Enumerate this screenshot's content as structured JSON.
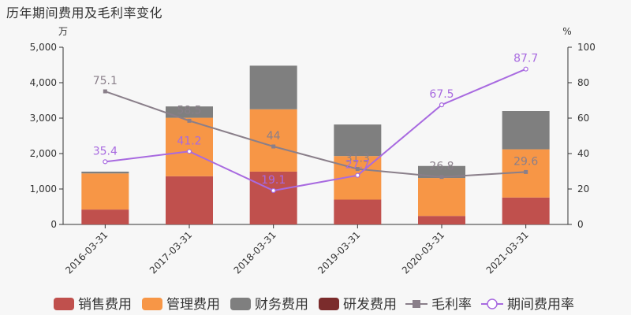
{
  "title": "历年期间费用及毛利率变化",
  "chart_data": {
    "type": "bar",
    "title": "历年期间费用及毛利率变化",
    "categories": [
      "2016-03-31",
      "2017-03-31",
      "2018-03-31",
      "2019-03-31",
      "2020-03-31",
      "2021-03-31"
    ],
    "y_left": {
      "unit": "万",
      "ylim": [
        0,
        5000
      ],
      "ticks": [
        "0",
        "1,000",
        "2,000",
        "3,000",
        "4,000",
        "5,000"
      ]
    },
    "y_right": {
      "unit": "%",
      "ylim": [
        0,
        100
      ],
      "ticks": [
        "0",
        "20",
        "40",
        "60",
        "80",
        "100"
      ]
    },
    "bar_series": [
      {
        "name": "销售费用",
        "color": "#c0504d",
        "values": [
          420,
          1360,
          1490,
          700,
          240,
          760
        ]
      },
      {
        "name": "管理费用",
        "color": "#f79646",
        "values": [
          1020,
          1650,
          1760,
          1230,
          1070,
          1360
        ]
      },
      {
        "name": "财务费用",
        "color": "#7f7f7f",
        "values": [
          50,
          320,
          1230,
          890,
          340,
          1080
        ]
      },
      {
        "name": "研发费用",
        "color": "#7b2c2c",
        "values": [
          0,
          0,
          0,
          0,
          0,
          0
        ]
      }
    ],
    "line_series": [
      {
        "name": "毛利率",
        "color": "#8a7f8a",
        "values": [
          75.1,
          58.5,
          44,
          31.3,
          26.8,
          29.6
        ],
        "labels": [
          "75.1",
          "58.5",
          "44",
          "31.3",
          "26.8",
          "29.6"
        ]
      },
      {
        "name": "期间费用率",
        "color": "#a86ae0",
        "values": [
          35.4,
          41.2,
          19.1,
          27.7,
          67.5,
          87.7
        ],
        "labels": [
          "35.4",
          "41.2",
          "19.1",
          "27.7",
          "67.5",
          "87.7"
        ]
      }
    ],
    "legend_position": "bottom",
    "grid": false
  }
}
